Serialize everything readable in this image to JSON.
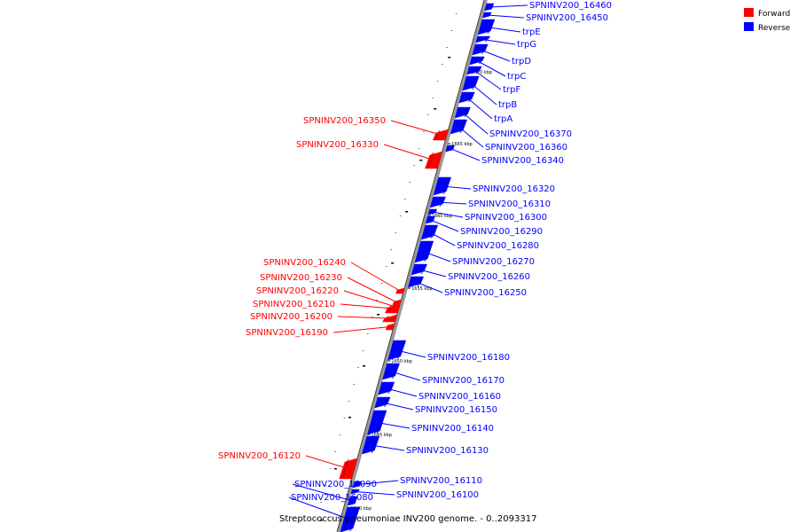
{
  "caption": "Streptococcus pneumoniae INV200 genome. - 0..2093317",
  "legend": [
    {
      "label": "Forward",
      "color": "#ff0000"
    },
    {
      "label": "Reverse",
      "color": "#0000ff"
    }
  ],
  "colors": {
    "forward": "#ff0000",
    "reverse": "#0000ff",
    "backbone": "#888888"
  },
  "scale_ticks": [
    "1670 kbp",
    "1665 kbp",
    "1660 kbp",
    "1655 kbp",
    "1650 kbp",
    "1645 kbp",
    "1640 kbp"
  ],
  "genes": [
    {
      "name": "SPNINV200_16460",
      "strand": "reverse"
    },
    {
      "name": "SPNINV200_16450",
      "strand": "reverse"
    },
    {
      "name": "trpE",
      "strand": "reverse"
    },
    {
      "name": "trpG",
      "strand": "reverse"
    },
    {
      "name": "trpD",
      "strand": "reverse"
    },
    {
      "name": "trpC",
      "strand": "reverse"
    },
    {
      "name": "trpF",
      "strand": "reverse"
    },
    {
      "name": "trpB",
      "strand": "reverse"
    },
    {
      "name": "trpA",
      "strand": "reverse"
    },
    {
      "name": "SPNINV200_16370",
      "strand": "reverse"
    },
    {
      "name": "SPNINV200_16360",
      "strand": "reverse"
    },
    {
      "name": "SPNINV200_16340",
      "strand": "reverse"
    },
    {
      "name": "SPNINV200_16350",
      "strand": "forward"
    },
    {
      "name": "SPNINV200_16330",
      "strand": "forward"
    },
    {
      "name": "SPNINV200_16320",
      "strand": "reverse"
    },
    {
      "name": "SPNINV200_16310",
      "strand": "reverse"
    },
    {
      "name": "SPNINV200_16300",
      "strand": "reverse"
    },
    {
      "name": "SPNINV200_16290",
      "strand": "reverse"
    },
    {
      "name": "SPNINV200_16280",
      "strand": "reverse"
    },
    {
      "name": "SPNINV200_16270",
      "strand": "reverse"
    },
    {
      "name": "SPNINV200_16260",
      "strand": "reverse"
    },
    {
      "name": "SPNINV200_16250",
      "strand": "reverse"
    },
    {
      "name": "SPNINV200_16240",
      "strand": "forward"
    },
    {
      "name": "SPNINV200_16230",
      "strand": "forward"
    },
    {
      "name": "SPNINV200_16220",
      "strand": "forward"
    },
    {
      "name": "SPNINV200_16210",
      "strand": "forward"
    },
    {
      "name": "SPNINV200_16200",
      "strand": "forward"
    },
    {
      "name": "SPNINV200_16190",
      "strand": "forward"
    },
    {
      "name": "SPNINV200_16180",
      "strand": "reverse"
    },
    {
      "name": "SPNINV200_16170",
      "strand": "reverse"
    },
    {
      "name": "SPNINV200_16160",
      "strand": "reverse"
    },
    {
      "name": "SPNINV200_16150",
      "strand": "reverse"
    },
    {
      "name": "SPNINV200_16140",
      "strand": "reverse"
    },
    {
      "name": "SPNINV200_16130",
      "strand": "reverse"
    },
    {
      "name": "SPNINV200_16120",
      "strand": "forward"
    },
    {
      "name": "SPNINV200_16110",
      "strand": "reverse"
    },
    {
      "name": "SPNINV200_16100",
      "strand": "reverse"
    },
    {
      "name": "SPNINV200_16090",
      "strand": "reverse"
    },
    {
      "name": "SPNINV200_16080",
      "strand": "reverse"
    }
  ]
}
